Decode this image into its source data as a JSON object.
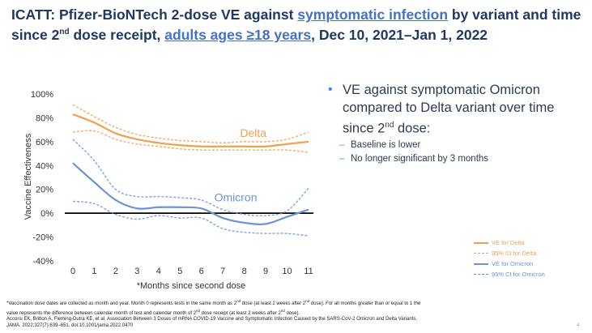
{
  "title": {
    "p1": "ICATT: Pfizer-BioNTech 2-dose VE against ",
    "link1": "symptomatic infection",
    "p2": " by variant and time since 2",
    "sup": "nd",
    "p3": " dose receipt, ",
    "link2": "adults ages ≥18 years",
    "p4": ", Dec 10, 2021–Jan 1, 2022"
  },
  "bullets": {
    "main_a": "VE against symptomatic Omicron compared to Delta variant over time since 2",
    "main_sup": "nd",
    "main_b": " dose:",
    "sub": [
      "Baseline is lower",
      "No longer significant by 3 months"
    ]
  },
  "legend": [
    "VE for Delta",
    "95% CI for Delta",
    "VE for Omicron",
    "95% CI for Omicron"
  ],
  "footnote": {
    "l1a": "*Vaccination dose dates are collected as month and year. Month 0 represents tests in the same month as 2",
    "l1b": " dose (at least 2 weeks after 2",
    "l1c": " dose).  For all months greater than or equal to 1 the",
    "l2a": "value represents the difference between calendar month of test and calendar month of 2",
    "l2b": " dose receipt (at least 2 weeks after 2",
    "l2c": " dose).",
    "sup": "nd",
    "l3": "Accorsi EK, Britton A, Fleming-Dutra KE, et al. Association Between 3 Doses of mRNA COVID-19 Vaccine and Symptomatic Infection Caused by the SARS-CoV-2 Omicron and Delta Variants.",
    "l4": "JAMA. 2022;327(7):639–651. doi:10.1001/jama.2022.0470"
  },
  "page_number": "4",
  "chart_data": {
    "type": "line",
    "x": [
      0,
      1,
      2,
      3,
      4,
      5,
      6,
      7,
      8,
      9,
      10,
      11
    ],
    "xlabel": "*Months since second dose",
    "ylabel": "Vaccine Effectiveness",
    "ylim": [
      -40,
      100
    ],
    "yticks": [
      -40,
      -20,
      0,
      20,
      40,
      60,
      80,
      100
    ],
    "ytick_labels": [
      "-40%",
      "-20%",
      "0%",
      "20%",
      "40%",
      "60%",
      "80%",
      "100%"
    ],
    "grid": false,
    "legend_position": "bottom-right",
    "annotations": [
      {
        "text": "Delta",
        "x": 7.8,
        "y": 64,
        "color": "#f0a050"
      },
      {
        "text": "Omicron",
        "x": 6.6,
        "y": 10,
        "color": "#6b93d6"
      }
    ],
    "series": [
      {
        "name": "VE for Delta",
        "color": "#f0a050",
        "style": "solid",
        "values": [
          83,
          76,
          67,
          62,
          59,
          57,
          56,
          56,
          56,
          56,
          58,
          60
        ]
      },
      {
        "name": "95% CI for Delta",
        "color": "#f0a050",
        "style": "dashed",
        "values": [
          91,
          81,
          72,
          66,
          63,
          61,
          60,
          59,
          60,
          60,
          62,
          68
        ]
      },
      {
        "name": "95% CI for Delta",
        "color": "#f0a050",
        "style": "dashed",
        "values": [
          68,
          69,
          62,
          58,
          56,
          54,
          53,
          53,
          53,
          53,
          53,
          51
        ]
      },
      {
        "name": "VE for Omicron",
        "color": "#6b93d6",
        "style": "solid",
        "values": [
          42,
          26,
          11,
          4,
          5,
          5,
          4,
          -4,
          -8,
          -9,
          -3,
          3
        ]
      },
      {
        "name": "95% CI for Omicron",
        "color": "#6b93d6",
        "style": "dashed",
        "values": [
          62,
          44,
          20,
          14,
          14,
          13,
          11,
          3,
          -1,
          -2,
          2,
          21
        ]
      },
      {
        "name": "95% CI for Omicron",
        "color": "#6b93d6",
        "style": "dashed",
        "values": [
          10,
          8,
          -1,
          -5,
          -2,
          -4,
          -4,
          -13,
          -16,
          -17,
          -17,
          -19
        ]
      }
    ]
  }
}
